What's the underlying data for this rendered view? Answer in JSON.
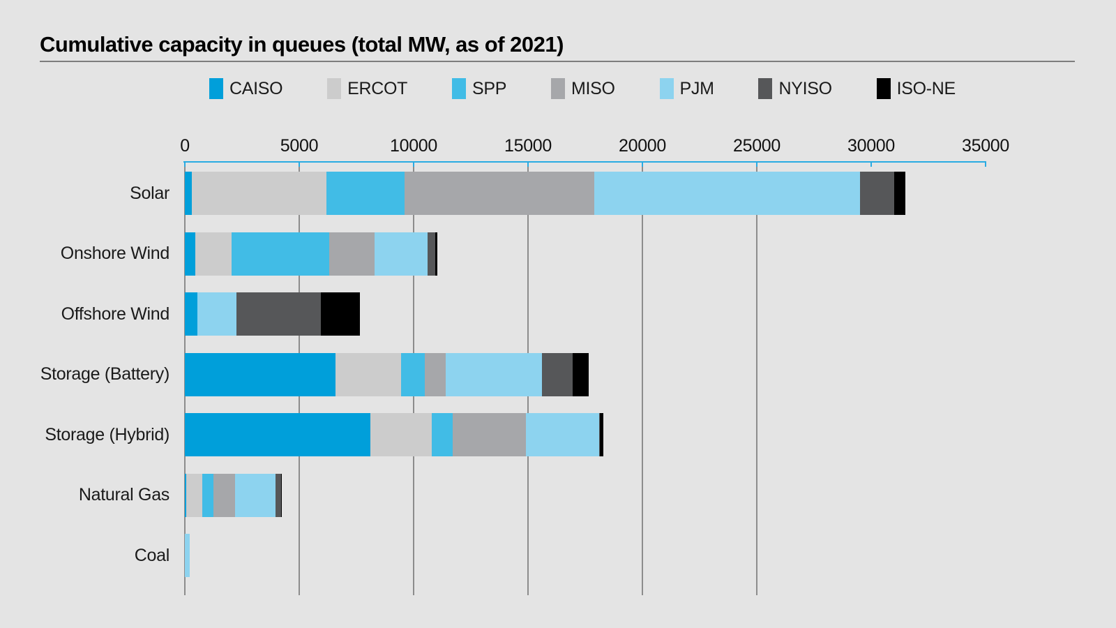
{
  "header": {
    "title": "Cumulative capacity in queues (total MW, as of 2021)"
  },
  "colors": {
    "background": "#e4e4e4",
    "axis": "#29abe2",
    "gridline": "#8c8c8c",
    "text": "#1a1a1a"
  },
  "chart_data": {
    "type": "bar",
    "orientation": "horizontal_stacked",
    "title": "Cumulative capacity in queues (total MW, as of 2021)",
    "unit": "MW",
    "legend_position": "top",
    "grid": "vertical",
    "xlim": [
      0,
      35000
    ],
    "x_ticks": [
      "0",
      "5000",
      "10000",
      "15000",
      "20000",
      "25000",
      "30000",
      "35000"
    ],
    "x_tick_values": [
      0,
      5000,
      10000,
      15000,
      20000,
      25000,
      30000,
      35000
    ],
    "gridlines_at": [
      0,
      5000,
      10000,
      15000,
      20000,
      25000
    ],
    "categories": [
      "Solar",
      "Onshore Wind",
      "Offshore Wind",
      "Storage (Battery)",
      "Storage (Hybrid)",
      "Natural Gas",
      "Coal"
    ],
    "series": [
      {
        "name": "CAISO",
        "color": "#009fda",
        "values": [
          300,
          450,
          550,
          6600,
          8100,
          50,
          0
        ]
      },
      {
        "name": "ERCOT",
        "color": "#cccccc",
        "values": [
          5900,
          1600,
          0,
          2850,
          2700,
          700,
          0
        ]
      },
      {
        "name": "SPP",
        "color": "#41bce6",
        "values": [
          3400,
          4250,
          0,
          1050,
          900,
          500,
          0
        ]
      },
      {
        "name": "MISO",
        "color": "#a6a7aa",
        "values": [
          8300,
          2000,
          0,
          900,
          3200,
          950,
          0
        ]
      },
      {
        "name": "PJM",
        "color": "#8dd3ef",
        "values": [
          11600,
          2300,
          1700,
          4200,
          3200,
          1750,
          200
        ]
      },
      {
        "name": "NYISO",
        "color": "#565759",
        "values": [
          1500,
          350,
          3700,
          1350,
          50,
          250,
          0
        ]
      },
      {
        "name": "ISO-NE",
        "color": "#000000",
        "values": [
          500,
          100,
          1700,
          700,
          150,
          50,
          0
        ]
      }
    ],
    "totals": [
      31500,
      11050,
      7650,
      17650,
      18300,
      4250,
      200
    ]
  }
}
